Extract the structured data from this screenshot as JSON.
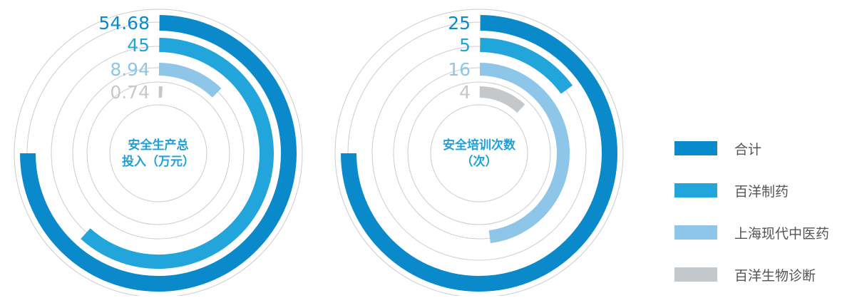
{
  "colors": {
    "total": "#0A8ACA",
    "baiyang_pharma": "#22A5DA",
    "shanghai_tcm": "#8DC6E8",
    "baiyang_bio": "#C5C8CB",
    "guide_ring": "#CCCCCC",
    "center_text": "#1FA0D8"
  },
  "chart_data": [
    {
      "type": "radial-bar",
      "center_label": [
        "安全生产总",
        "投入（万元）"
      ],
      "max": 54.68,
      "series": [
        {
          "name": "合计",
          "value": 54.68,
          "label": "54.68"
        },
        {
          "name": "百洋制药",
          "value": 45,
          "label": "45"
        },
        {
          "name": "上海现代中医药",
          "value": 8.94,
          "label": "8.94"
        },
        {
          "name": "百洋生物诊断",
          "value": 0.74,
          "label": "0.74"
        }
      ]
    },
    {
      "type": "radial-bar",
      "center_label": [
        "安全培训次数",
        "（次）"
      ],
      "max": 25,
      "series": [
        {
          "name": "合计",
          "value": 25,
          "label": "25"
        },
        {
          "name": "百洋制药",
          "value": 5,
          "label": "5"
        },
        {
          "name": "上海现代中医药",
          "value": 16,
          "label": "16"
        },
        {
          "name": "百洋生物诊断",
          "value": 4,
          "label": "4"
        }
      ]
    }
  ],
  "legend": [
    {
      "label": "合计",
      "color": "#0A8ACA"
    },
    {
      "label": "百洋制药",
      "color": "#22A5DA"
    },
    {
      "label": "上海现代中医药",
      "color": "#8DC6E8"
    },
    {
      "label": "百洋生物诊断",
      "color": "#C5C8CB"
    }
  ]
}
